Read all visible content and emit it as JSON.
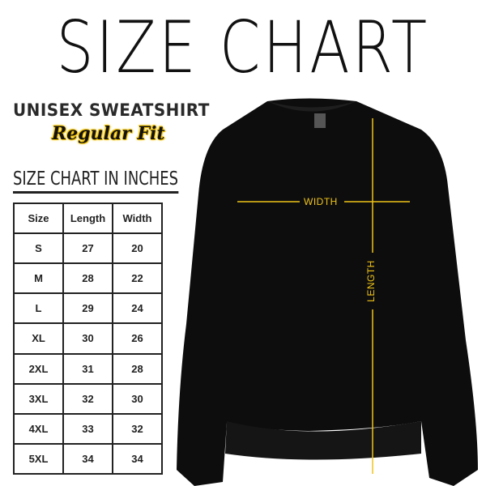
{
  "title": "SIZE CHART",
  "product": "UNISEX SWEATSHIRT",
  "fit": "Regular Fit",
  "table_title": "SIZE CHART IN INCHES",
  "table": {
    "headers": [
      "Size",
      "Length",
      "Width"
    ],
    "rows": [
      [
        "S",
        "27",
        "20"
      ],
      [
        "M",
        "28",
        "22"
      ],
      [
        "L",
        "29",
        "24"
      ],
      [
        "XL",
        "30",
        "26"
      ],
      [
        "2XL",
        "31",
        "28"
      ],
      [
        "3XL",
        "32",
        "30"
      ],
      [
        "4XL",
        "33",
        "32"
      ],
      [
        "5XL",
        "34",
        "34"
      ]
    ]
  },
  "measure": {
    "width_label": "WIDTH",
    "length_label": "LENGTH"
  },
  "colors": {
    "garment": "#0d0d0d",
    "measure_line": "#f0c419",
    "highlight": "#f5c400"
  }
}
